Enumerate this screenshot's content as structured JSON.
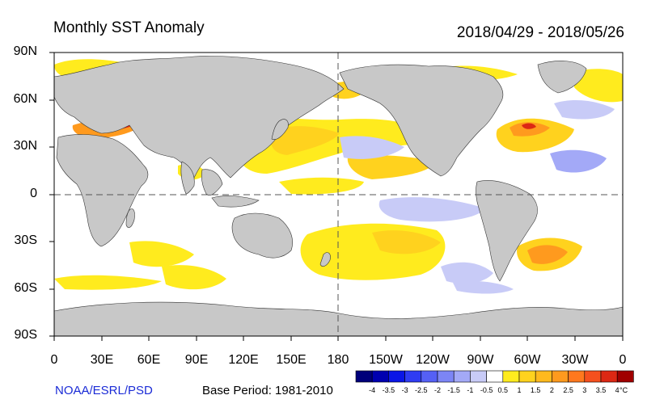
{
  "title": "Monthly SST Anomaly",
  "date_range": "2018/04/29 - 2018/05/26",
  "lat_labels": [
    "90N",
    "60N",
    "30N",
    "0",
    "30S",
    "60S",
    "90S"
  ],
  "lon_labels": [
    "0",
    "30E",
    "60E",
    "90E",
    "120E",
    "150E",
    "180",
    "150W",
    "120W",
    "90W",
    "60W",
    "30W",
    "0"
  ],
  "source": "NOAA/ESRL/PSD",
  "base_period": "Base Period: 1981-2010",
  "colorbar": {
    "labels": [
      "-4",
      "-3.5",
      "-3",
      "-2.5",
      "-2",
      "-1.5",
      "-1",
      "-0.5",
      "0.5",
      "1",
      "1.5",
      "2",
      "2.5",
      "3",
      "3.5",
      "4"
    ],
    "colors": [
      "#00007a",
      "#0000b0",
      "#0a16e6",
      "#2f3cf2",
      "#5560f5",
      "#7c85f5",
      "#a3a9f7",
      "#c8cbf7",
      "#ffffff",
      "#ffeb1e",
      "#ffd21e",
      "#ffb91e",
      "#ff9a1e",
      "#ff781e",
      "#f5501e",
      "#dc2814",
      "#a00000"
    ],
    "unit": "°C"
  },
  "colors": {
    "land": "#c8c8c8",
    "land_stroke": "#333333",
    "ocean": "#ffffff",
    "guide": "#555555"
  }
}
